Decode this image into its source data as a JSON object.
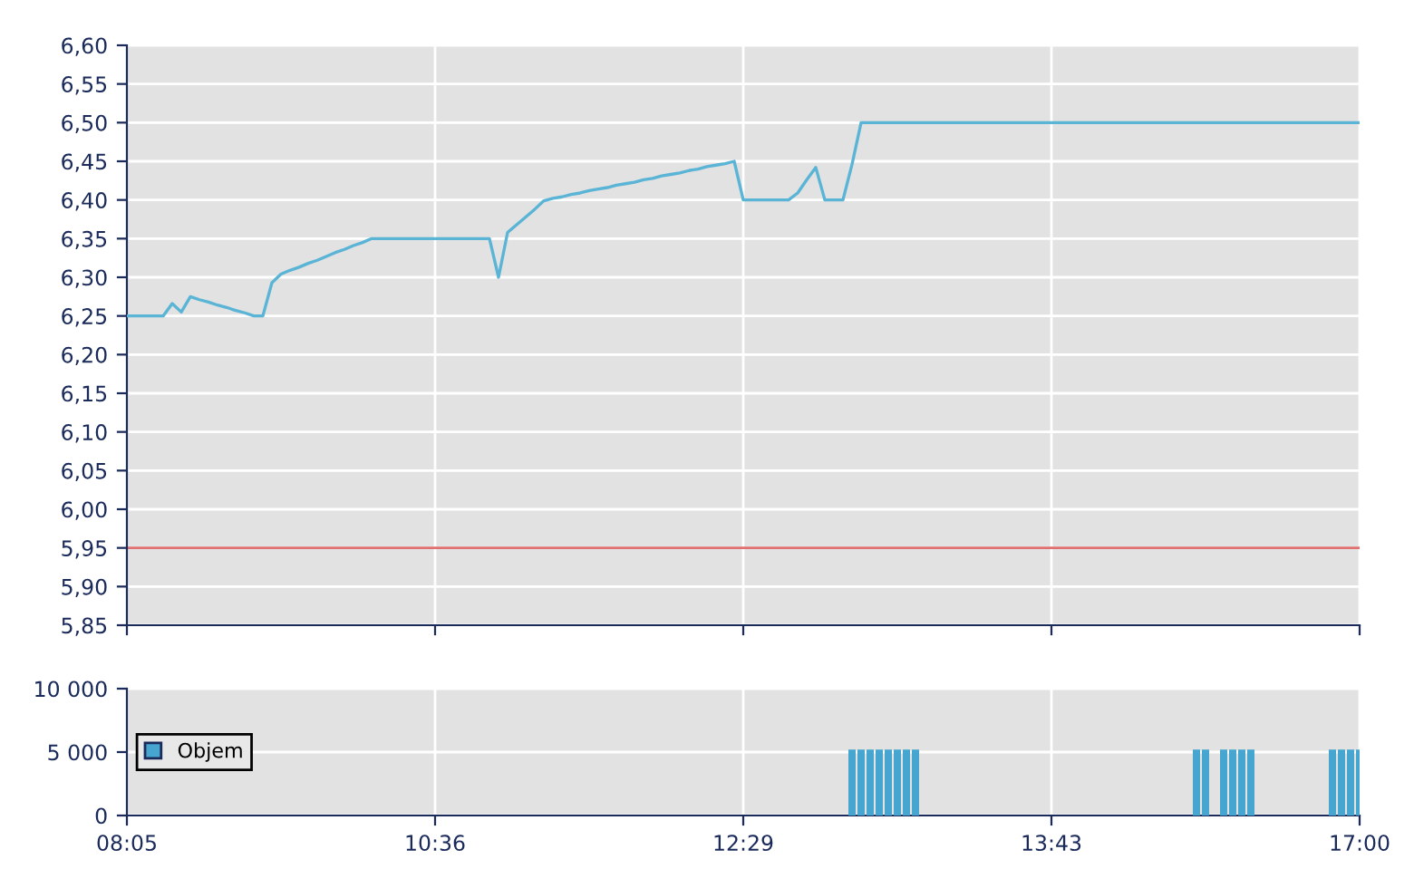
{
  "chart_data": [
    {
      "type": "line",
      "ylim": [
        5.85,
        6.6
      ],
      "categories": [
        null,
        null,
        null,
        null,
        null,
        null,
        null,
        null,
        null,
        null,
        null,
        null,
        null,
        null,
        null,
        null,
        null,
        null,
        null,
        null,
        null,
        null,
        null,
        null,
        null,
        null,
        null,
        null,
        null,
        null,
        null,
        null,
        null,
        null,
        null,
        null,
        null,
        null,
        null,
        null,
        null,
        null,
        null,
        null,
        null,
        null,
        null,
        null,
        null,
        null,
        null,
        null,
        null,
        null,
        null,
        null,
        null,
        null,
        null,
        null,
        null,
        null,
        null,
        null,
        null,
        null,
        null,
        null,
        null,
        null,
        null,
        null,
        null,
        null,
        null,
        null,
        null,
        null,
        null,
        null,
        null,
        null,
        null,
        null,
        null,
        null,
        null,
        null,
        null,
        null,
        null,
        null,
        null,
        null,
        null,
        null,
        null,
        null,
        null,
        null,
        null,
        null,
        null,
        null,
        null,
        null,
        null,
        null,
        null,
        null,
        null,
        null,
        null,
        null,
        null,
        null,
        null,
        null,
        null,
        null,
        null,
        null,
        null,
        null,
        null,
        null,
        null,
        null,
        null,
        null,
        null,
        null,
        null,
        null,
        null,
        null,
        null
      ],
      "yticks": [
        {
          "value": 5.85,
          "label": "5,85"
        },
        {
          "value": 5.9,
          "label": "5,90"
        },
        {
          "value": 5.95,
          "label": "5,95"
        },
        {
          "value": 6.0,
          "label": "6,00"
        },
        {
          "value": 6.05,
          "label": "6,05"
        },
        {
          "value": 6.1,
          "label": "6,10"
        },
        {
          "value": 6.15,
          "label": "6,15"
        },
        {
          "value": 6.2,
          "label": "6,20"
        },
        {
          "value": 6.25,
          "label": "6,25"
        },
        {
          "value": 6.3,
          "label": "6,30"
        },
        {
          "value": 6.35,
          "label": "6,35"
        },
        {
          "value": 6.4,
          "label": "6,40"
        },
        {
          "value": 6.45,
          "label": "6,45"
        },
        {
          "value": 6.5,
          "label": "6,50"
        },
        {
          "value": 6.55,
          "label": "6,55"
        },
        {
          "value": 6.6,
          "label": "6,60"
        }
      ],
      "grid": true,
      "series": [
        {
          "color": "#5ab4d6",
          "values": [
            6.25,
            6.25,
            6.25,
            6.25,
            6.25,
            6.266,
            6.255,
            6.275,
            6.271,
            6.268,
            6.264,
            6.261,
            6.257,
            6.254,
            6.25,
            6.25,
            6.293,
            6.304,
            6.309,
            6.313,
            6.318,
            6.322,
            6.327,
            6.332,
            6.336,
            6.341,
            6.345,
            6.35,
            6.35,
            6.35,
            6.35,
            6.35,
            6.35,
            6.35,
            6.35,
            6.35,
            6.35,
            6.35,
            6.35,
            6.35,
            6.35,
            6.3,
            6.358,
            6.368,
            6.378,
            6.388,
            6.399,
            6.402,
            6.404,
            6.407,
            6.409,
            6.412,
            6.414,
            6.416,
            6.419,
            6.421,
            6.423,
            6.426,
            6.428,
            6.431,
            6.433,
            6.435,
            6.438,
            6.44,
            6.443,
            6.445,
            6.447,
            6.45,
            6.4,
            6.4,
            6.4,
            6.4,
            6.4,
            6.4,
            6.409,
            6.426,
            6.442,
            6.4,
            6.4,
            6.4,
            6.446,
            6.5,
            6.5,
            6.5,
            6.5,
            6.5,
            6.5,
            6.5,
            6.5,
            6.5,
            6.5,
            6.5,
            6.5,
            6.5,
            6.5,
            6.5,
            6.5,
            6.5,
            6.5,
            6.5,
            6.5,
            6.5,
            6.5,
            6.5,
            6.5,
            6.5,
            6.5,
            6.5,
            6.5,
            6.5,
            6.5,
            6.5,
            6.5,
            6.5,
            6.5,
            6.5,
            6.5,
            6.5,
            6.5,
            6.5,
            6.5,
            6.5,
            6.5,
            6.5,
            6.5,
            6.5,
            6.5,
            6.5,
            6.5,
            6.5,
            6.5,
            6.5,
            6.5,
            6.5,
            6.5,
            6.5,
            6.5
          ]
        }
      ],
      "ref_lines": [
        {
          "axis": "y",
          "value": 5.95,
          "color": "#e07070"
        }
      ]
    },
    {
      "type": "bar",
      "categories": [
        "08:05",
        null,
        null,
        null,
        null,
        null,
        null,
        null,
        null,
        null,
        null,
        null,
        null,
        null,
        null,
        null,
        null,
        null,
        null,
        null,
        null,
        null,
        null,
        null,
        null,
        null,
        null,
        null,
        null,
        null,
        null,
        null,
        null,
        null,
        "10:36",
        null,
        null,
        null,
        null,
        null,
        null,
        null,
        null,
        null,
        null,
        null,
        null,
        null,
        null,
        null,
        null,
        null,
        null,
        null,
        null,
        null,
        null,
        null,
        null,
        null,
        null,
        null,
        null,
        null,
        null,
        null,
        null,
        null,
        "12:29",
        null,
        null,
        null,
        null,
        null,
        null,
        null,
        null,
        null,
        null,
        null,
        null,
        null,
        null,
        null,
        null,
        null,
        null,
        null,
        null,
        null,
        null,
        null,
        null,
        null,
        null,
        null,
        null,
        null,
        null,
        null,
        null,
        null,
        "13:43",
        null,
        null,
        null,
        null,
        null,
        null,
        null,
        null,
        null,
        null,
        null,
        null,
        null,
        null,
        null,
        null,
        null,
        null,
        null,
        null,
        null,
        null,
        null,
        null,
        null,
        null,
        null,
        null,
        null,
        null,
        null,
        null,
        null,
        "17:00"
      ],
      "series": [
        {
          "name": "Objem",
          "color": "#46a6cf",
          "values": [
            null,
            null,
            null,
            null,
            null,
            null,
            null,
            null,
            null,
            null,
            null,
            null,
            null,
            null,
            null,
            null,
            null,
            null,
            null,
            null,
            null,
            null,
            null,
            null,
            null,
            null,
            null,
            null,
            null,
            null,
            null,
            null,
            null,
            null,
            null,
            null,
            null,
            null,
            null,
            null,
            null,
            null,
            null,
            null,
            null,
            null,
            null,
            null,
            null,
            null,
            null,
            null,
            null,
            null,
            null,
            null,
            null,
            null,
            null,
            null,
            null,
            null,
            null,
            null,
            null,
            null,
            null,
            null,
            null,
            null,
            null,
            null,
            null,
            null,
            null,
            null,
            null,
            null,
            null,
            null,
            5200,
            5200,
            5200,
            5200,
            5200,
            5200,
            5200,
            5200,
            null,
            null,
            null,
            null,
            null,
            null,
            null,
            null,
            null,
            null,
            null,
            null,
            null,
            null,
            null,
            null,
            null,
            null,
            null,
            null,
            null,
            null,
            null,
            null,
            null,
            null,
            null,
            null,
            null,
            null,
            5200,
            5200,
            null,
            5200,
            5200,
            5200,
            5200,
            null,
            null,
            null,
            null,
            null,
            null,
            null,
            null,
            5200,
            5200,
            5200,
            5200
          ]
        }
      ],
      "ylim": [
        0,
        10000
      ],
      "yticks": [
        {
          "value": 0,
          "label": "0"
        },
        {
          "value": 5000,
          "label": "5 000"
        },
        {
          "value": 10000,
          "label": "10 000"
        }
      ],
      "grid": true,
      "legend": "left"
    }
  ]
}
